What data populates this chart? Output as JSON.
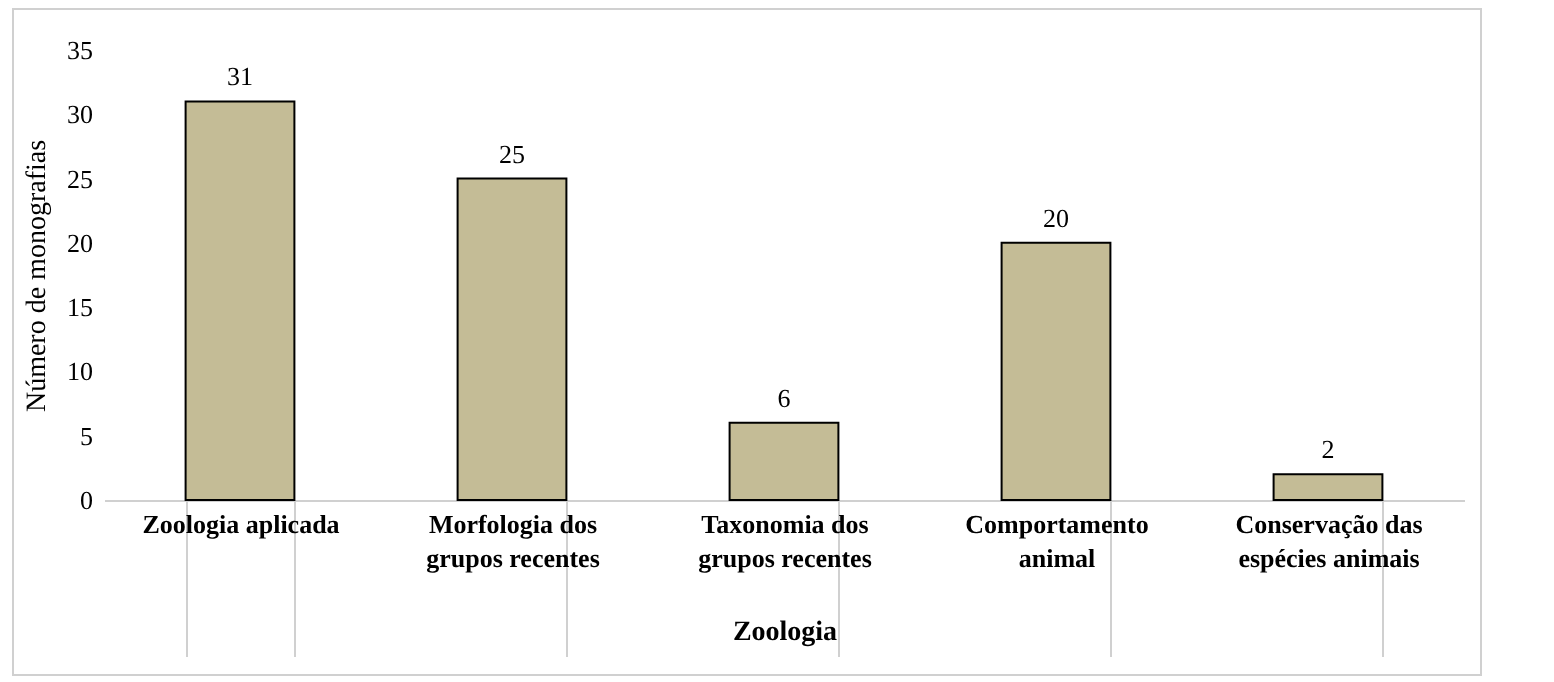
{
  "chart_data": {
    "type": "bar",
    "xlabel": "Zoologia",
    "ylabel": "Número de monografias",
    "categories": [
      "Zoologia aplicada",
      "Morfologia dos grupos recentes",
      "Taxonomia dos grupos recentes",
      "Comportamento animal",
      "Conservação das espécies animais"
    ],
    "values": [
      31,
      25,
      6,
      20,
      2
    ],
    "color": "#c4bc96",
    "ylim": [
      0,
      35
    ],
    "yticks": [
      0,
      5,
      10,
      15,
      20,
      25,
      30,
      35
    ],
    "grid": false,
    "data_labels": true
  }
}
